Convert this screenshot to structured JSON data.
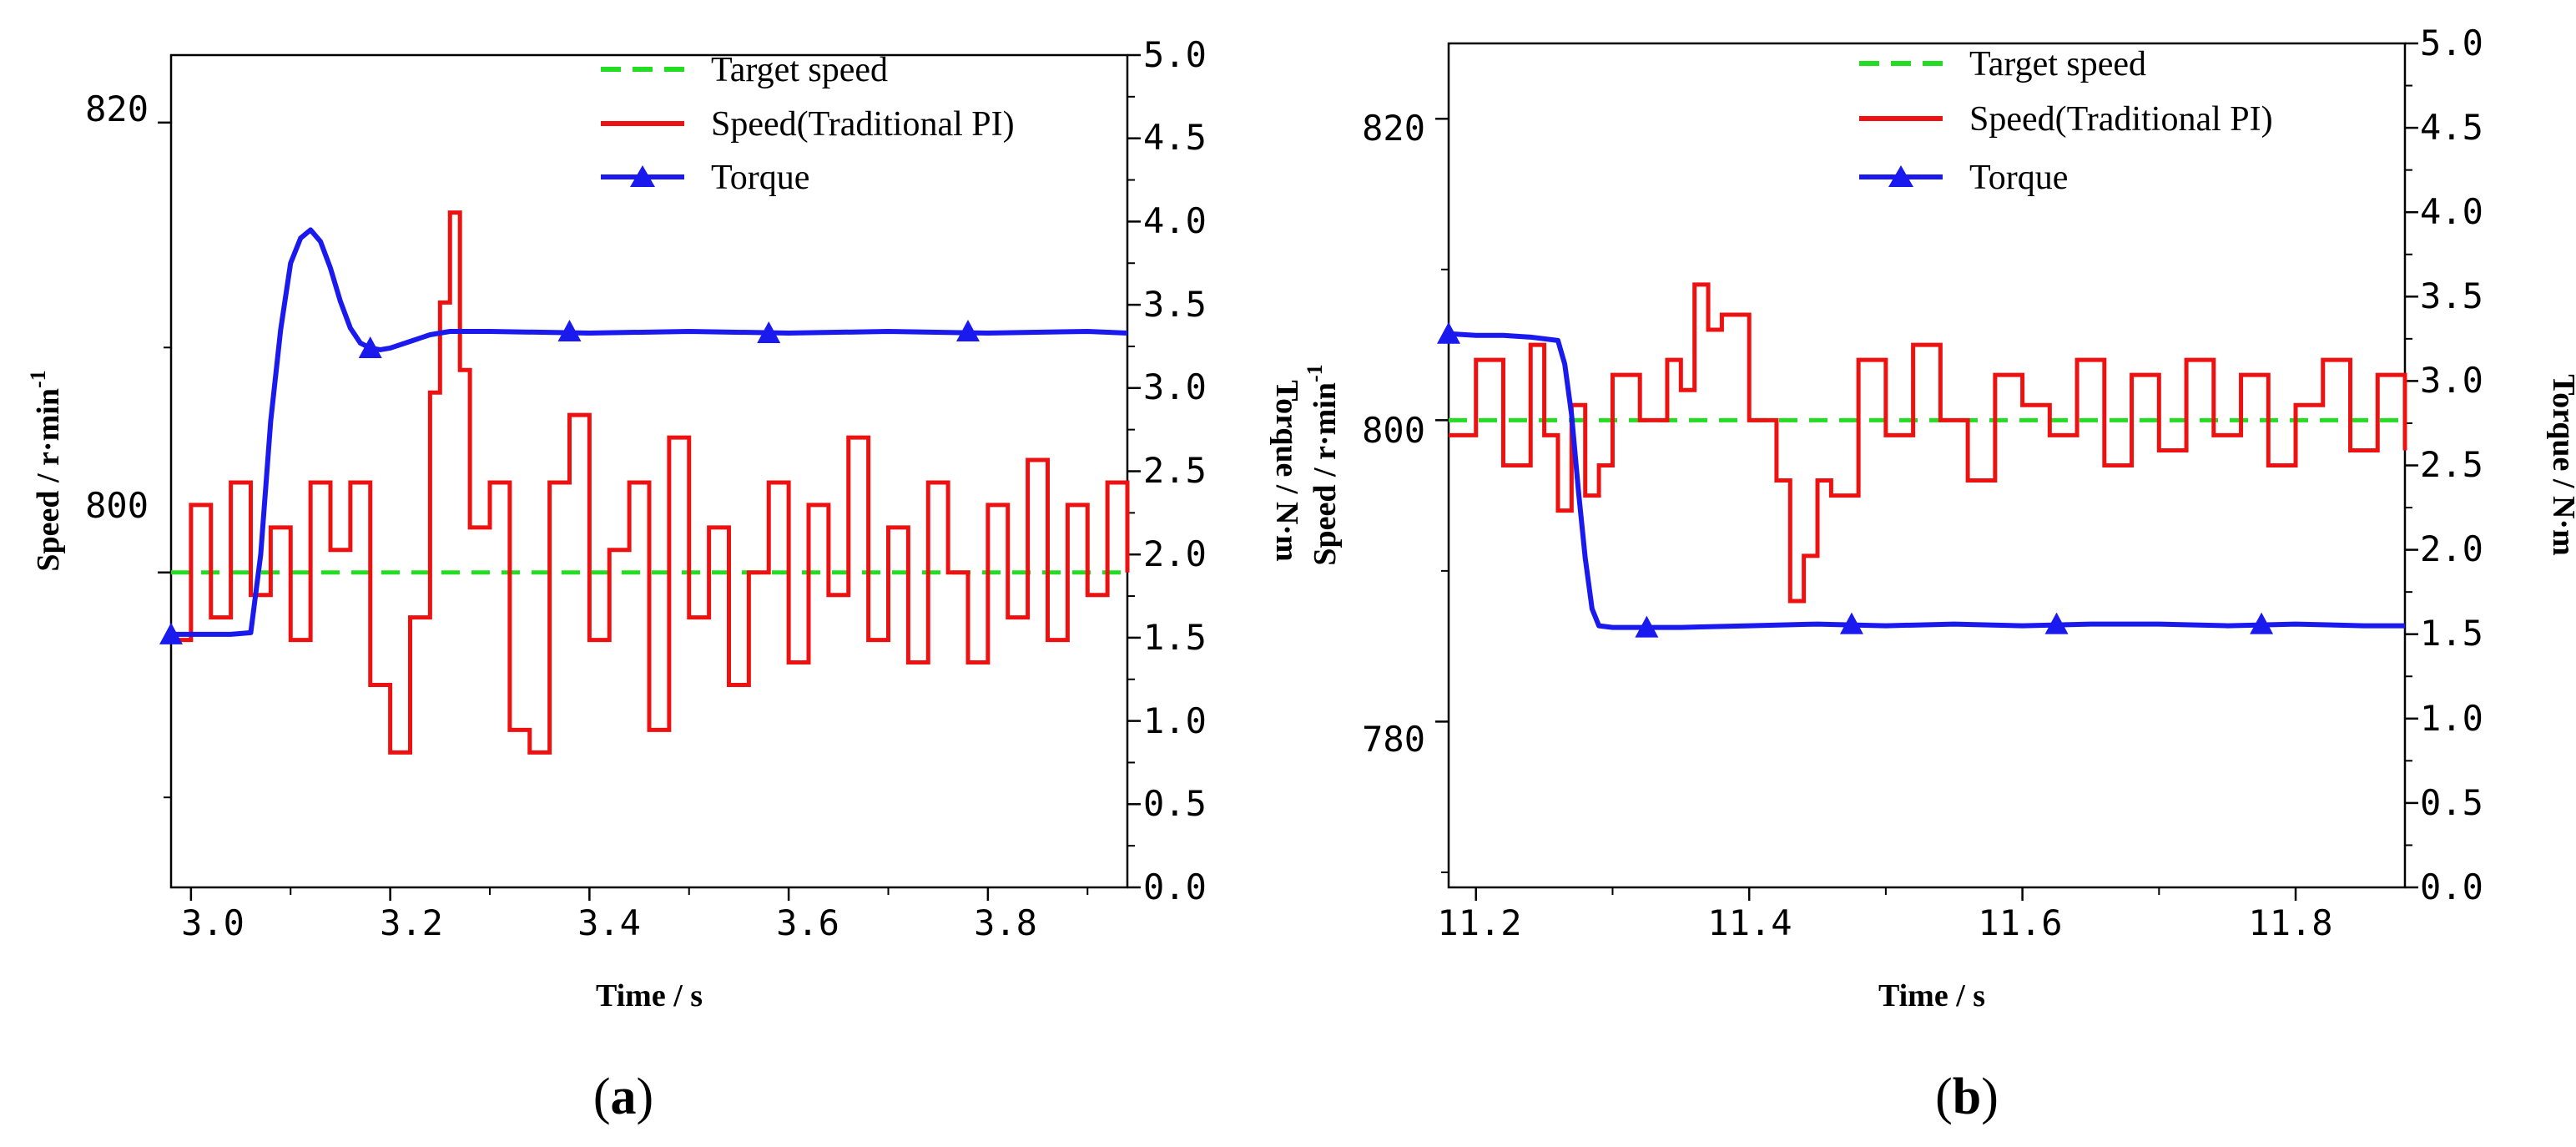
{
  "chart_data": [
    {
      "type": "line",
      "panel_label_open": "(",
      "panel_label_letter": "a",
      "panel_label_close": ")",
      "xlabel": "Time / s",
      "ylabel_left_main": "Speed / r·min",
      "ylabel_left_sup": "-1",
      "ylabel_right": "Torque / N·m",
      "xlim": [
        2.98,
        3.94
      ],
      "ylim_left": [
        786,
        823
      ],
      "ylim_right": [
        0,
        5
      ],
      "x_ticks": [
        "3.0",
        "3.2",
        "3.4",
        "3.6",
        "3.8"
      ],
      "y_ticks_left": [
        "800",
        "820"
      ],
      "y_ticks_right": [
        "0.0",
        "0.5",
        "1.0",
        "1.5",
        "2.0",
        "2.5",
        "3.0",
        "3.5",
        "4.0",
        "4.5",
        "5.0"
      ],
      "legend": [
        "Target speed",
        "Speed(Traditional PI)",
        "Torque"
      ],
      "colors": {
        "target": "#22dd22",
        "speed": "#ee1111",
        "torque": "#1a1aee"
      },
      "target_speed": 800,
      "speed_x": [
        2.98,
        3.0,
        3.02,
        3.04,
        3.06,
        3.08,
        3.1,
        3.12,
        3.14,
        3.16,
        3.18,
        3.2,
        3.22,
        3.24,
        3.25,
        3.26,
        3.27,
        3.28,
        3.3,
        3.32,
        3.34,
        3.36,
        3.38,
        3.4,
        3.42,
        3.44,
        3.46,
        3.48,
        3.5,
        3.52,
        3.54,
        3.56,
        3.58,
        3.6,
        3.62,
        3.64,
        3.66,
        3.68,
        3.7,
        3.72,
        3.74,
        3.76,
        3.78,
        3.8,
        3.82,
        3.84,
        3.86,
        3.88,
        3.9,
        3.92,
        3.94
      ],
      "speed_y": [
        797,
        803,
        798,
        804,
        799,
        802,
        797,
        804,
        801,
        804,
        795,
        792,
        798,
        808,
        812,
        816,
        809,
        802,
        804,
        793,
        792,
        804,
        807,
        797,
        801,
        804,
        793,
        806,
        798,
        802,
        795,
        800,
        804,
        796,
        803,
        799,
        806,
        797,
        802,
        796,
        804,
        800,
        796,
        803,
        798,
        805,
        797,
        803,
        799,
        804,
        800
      ],
      "torque_x": [
        2.98,
        3.0,
        3.02,
        3.04,
        3.06,
        3.07,
        3.08,
        3.09,
        3.1,
        3.11,
        3.12,
        3.13,
        3.14,
        3.15,
        3.16,
        3.17,
        3.18,
        3.19,
        3.2,
        3.22,
        3.24,
        3.26,
        3.3,
        3.4,
        3.5,
        3.6,
        3.7,
        3.8,
        3.9,
        3.94
      ],
      "torque_y": [
        1.52,
        1.52,
        1.52,
        1.52,
        1.53,
        2.0,
        2.8,
        3.35,
        3.75,
        3.9,
        3.95,
        3.88,
        3.72,
        3.52,
        3.36,
        3.27,
        3.24,
        3.23,
        3.24,
        3.28,
        3.32,
        3.34,
        3.34,
        3.33,
        3.34,
        3.33,
        3.34,
        3.33,
        3.34,
        3.33
      ],
      "torque_markers_x": [
        2.98,
        3.18,
        3.38,
        3.58,
        3.78
      ],
      "torque_markers_y": [
        1.52,
        3.24,
        3.34,
        3.33,
        3.34
      ]
    },
    {
      "type": "line",
      "panel_label_open": "(",
      "panel_label_letter": "b",
      "panel_label_close": ")",
      "xlabel": "Time / s",
      "ylabel_left_main": "Speed / r·min",
      "ylabel_left_sup": "-1",
      "ylabel_right": "Torque / N·m",
      "xlim": [
        11.18,
        11.88
      ],
      "ylim_left": [
        769,
        825
      ],
      "ylim_right": [
        0,
        5
      ],
      "x_ticks": [
        "11.2",
        "11.4",
        "11.6",
        "11.8"
      ],
      "y_ticks_left": [
        "780",
        "800",
        "820"
      ],
      "y_ticks_right": [
        "0.0",
        "0.5",
        "1.0",
        "1.5",
        "2.0",
        "2.5",
        "3.0",
        "3.5",
        "4.0",
        "4.5",
        "5.0"
      ],
      "legend": [
        "Target speed",
        "Speed(Traditional PI)",
        "Torque"
      ],
      "colors": {
        "target": "#22dd22",
        "speed": "#ee1111",
        "torque": "#1a1aee"
      },
      "target_speed": 800,
      "speed_x": [
        11.18,
        11.2,
        11.22,
        11.24,
        11.25,
        11.26,
        11.27,
        11.28,
        11.29,
        11.3,
        11.32,
        11.34,
        11.35,
        11.36,
        11.37,
        11.38,
        11.4,
        11.42,
        11.43,
        11.44,
        11.45,
        11.46,
        11.48,
        11.5,
        11.52,
        11.54,
        11.56,
        11.58,
        11.6,
        11.62,
        11.64,
        11.66,
        11.68,
        11.7,
        11.72,
        11.74,
        11.76,
        11.78,
        11.8,
        11.82,
        11.84,
        11.86,
        11.88
      ],
      "speed_y": [
        799,
        804,
        797,
        805,
        799,
        794,
        801,
        795,
        797,
        803,
        800,
        804,
        802,
        809,
        806,
        807,
        800,
        796,
        788,
        791,
        796,
        795,
        804,
        799,
        805,
        800,
        796,
        803,
        801,
        799,
        804,
        797,
        803,
        798,
        804,
        799,
        803,
        797,
        801,
        804,
        798,
        803,
        798
      ],
      "torque_x": [
        11.18,
        11.2,
        11.22,
        11.24,
        11.26,
        11.265,
        11.27,
        11.275,
        11.28,
        11.285,
        11.29,
        11.3,
        11.35,
        11.4,
        11.45,
        11.5,
        11.55,
        11.6,
        11.65,
        11.7,
        11.75,
        11.8,
        11.85,
        11.88
      ],
      "torque_y": [
        3.28,
        3.27,
        3.27,
        3.26,
        3.24,
        3.1,
        2.8,
        2.35,
        1.95,
        1.65,
        1.55,
        1.54,
        1.54,
        1.55,
        1.56,
        1.55,
        1.56,
        1.55,
        1.56,
        1.56,
        1.55,
        1.56,
        1.55,
        1.55
      ],
      "torque_markers_x": [
        11.18,
        11.325,
        11.475,
        11.625,
        11.775
      ],
      "torque_markers_y": [
        3.28,
        1.54,
        1.56,
        1.56,
        1.56
      ]
    }
  ]
}
